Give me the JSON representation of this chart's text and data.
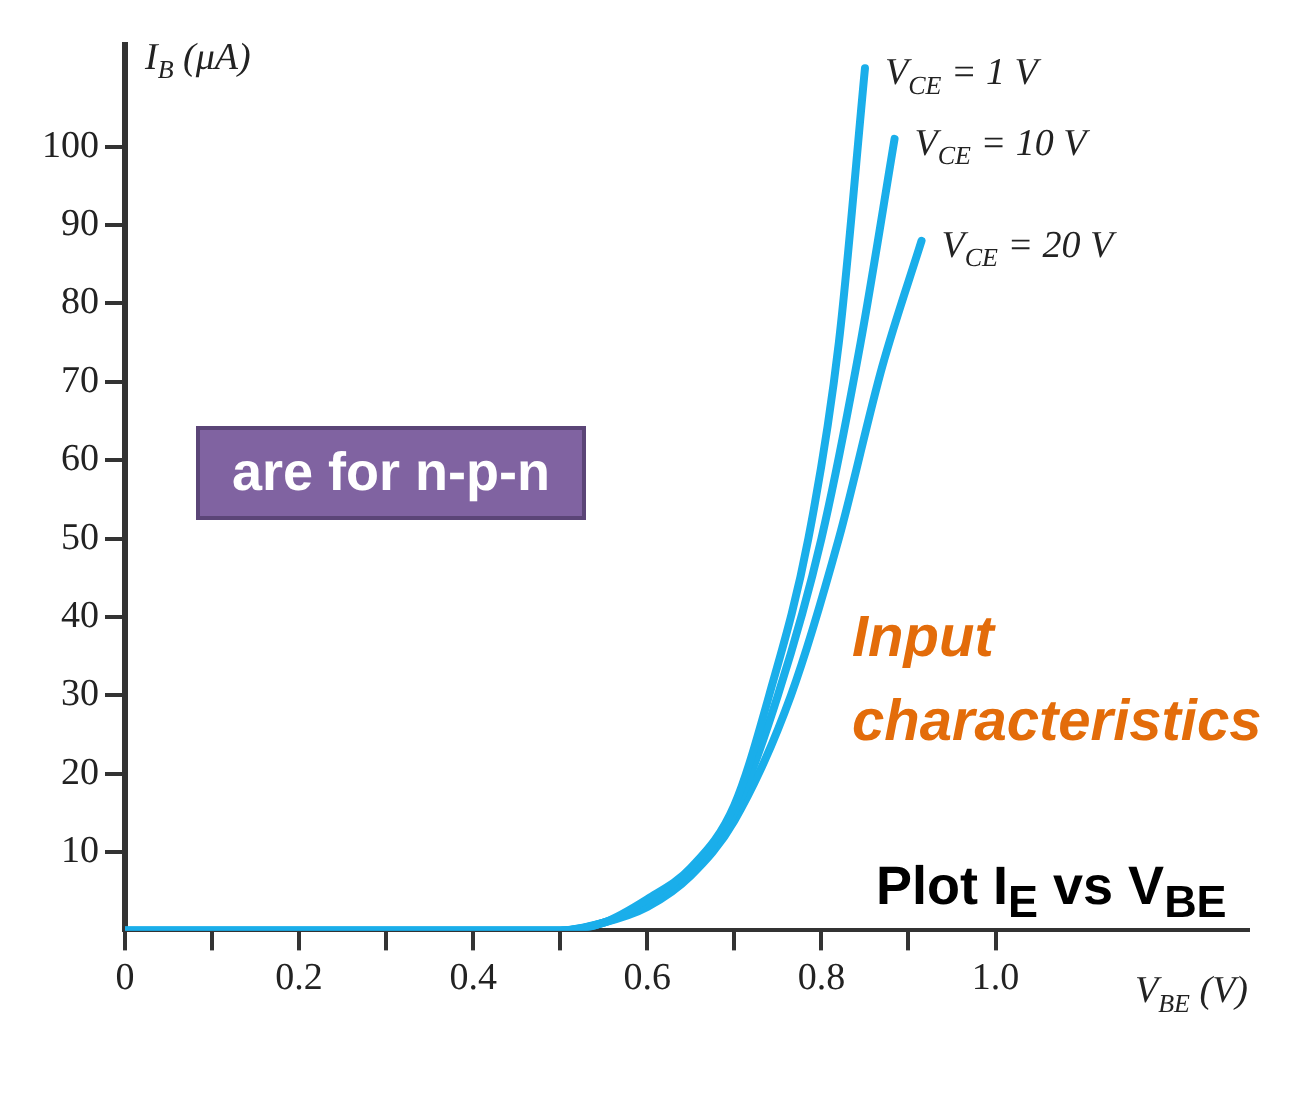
{
  "chart_data": {
    "type": "line",
    "xlabel": "V$_{BE}$ (V)",
    "ylabel": "I$_{B}$ (μA)",
    "xlim": [
      0,
      1.29
    ],
    "ylim": [
      0,
      113
    ],
    "xticks": [
      0,
      {
        "value": 0.1,
        "label": null
      },
      0.2,
      {
        "value": 0.3,
        "label": null
      },
      0.4,
      {
        "value": 0.5,
        "label": null
      },
      0.6,
      {
        "value": 0.7,
        "label": null
      },
      0.8,
      {
        "value": 0.9,
        "label": null
      },
      {
        "value": 1.0,
        "label": "1.0"
      }
    ],
    "yticks": [
      10,
      20,
      30,
      40,
      50,
      60,
      70,
      80,
      90,
      100
    ],
    "grid": false,
    "legend": false,
    "marker": "none",
    "line_style": "solid",
    "series": [
      {
        "name": "V$_{CE}$ = 1 V",
        "color": "#1aaeea",
        "x": [
          0,
          0.5,
          0.55,
          0.6,
          0.65,
          0.7,
          0.74,
          0.785,
          0.82,
          0.85
        ],
        "values": [
          0,
          0,
          1,
          4,
          8,
          16,
          30,
          50,
          75,
          110
        ]
      },
      {
        "name": "V$_{CE}$ = 10 V",
        "color": "#1aaeea",
        "x": [
          0,
          0.5,
          0.55,
          0.6,
          0.65,
          0.7,
          0.75,
          0.8,
          0.845,
          0.884
        ],
        "values": [
          0,
          0,
          1,
          3.5,
          7.5,
          15,
          30,
          50,
          75,
          101
        ]
      },
      {
        "name": "V$_{CE}$ = 20 V",
        "color": "#1aaeea",
        "x": [
          0,
          0.5,
          0.55,
          0.6,
          0.65,
          0.7,
          0.765,
          0.82,
          0.87,
          0.915
        ],
        "values": [
          0,
          0,
          1,
          3,
          7,
          14,
          30,
          50,
          72,
          88
        ]
      }
    ],
    "annotations": [
      "are for n-p-n",
      "Input characteristics",
      "Plot I$_{E}$ vs V$_{BE}$"
    ]
  }
}
